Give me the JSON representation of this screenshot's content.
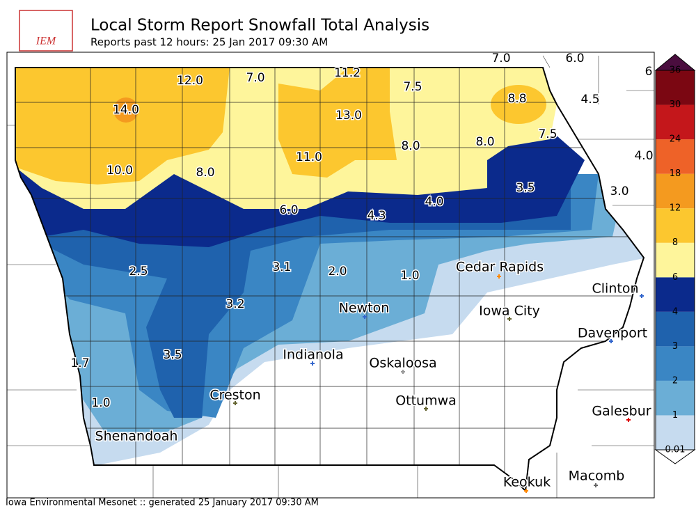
{
  "header": {
    "logo_text": "IEM",
    "title": "Local Storm Report Snowfall Total Analysis",
    "subtitle": "Reports past 12 hours: 25 Jan 2017 09:30 AM"
  },
  "footer": "Iowa Environmental Mesonet :: generated 25 January 2017 09:30 AM",
  "snowfall_labels": [
    "12.0",
    "7.0",
    "11.2",
    "7.5",
    "8.8",
    "14.0",
    "13.0",
    "4.5",
    "7.5",
    "8.0",
    "8.0",
    "11.0",
    "10.0",
    "8.0",
    "4.0",
    "3.5",
    "3.0",
    "6.0",
    "4.3",
    "4.0",
    "2.5",
    "3.1",
    "2.0",
    "1.0",
    "3.2",
    "3.5",
    "1.7",
    "1.0",
    "7.0",
    "6.0",
    "6"
  ],
  "cities": [
    "Cedar Rapids",
    "Clinton",
    "Iowa City",
    "Newton",
    "Davenport",
    "Indianola",
    "Oskaloosa",
    "Creston",
    "Ottumwa",
    "Galesbur",
    "Shenandoah",
    "Keokuk",
    "Macomb"
  ],
  "colorbar": {
    "levels": [
      0.01,
      1,
      2,
      3,
      4,
      6,
      8,
      12,
      18,
      24,
      30,
      36
    ],
    "colors": [
      "#c6dbef",
      "#6baed6",
      "#3a86c4",
      "#1f62ad",
      "#0b2a8c",
      "#fef59b",
      "#fcc72f",
      "#f49a1f",
      "#ee6228",
      "#c4171b",
      "#7b0712"
    ],
    "over_color": "#4a0d3e",
    "under_color": "#ffffff"
  }
}
